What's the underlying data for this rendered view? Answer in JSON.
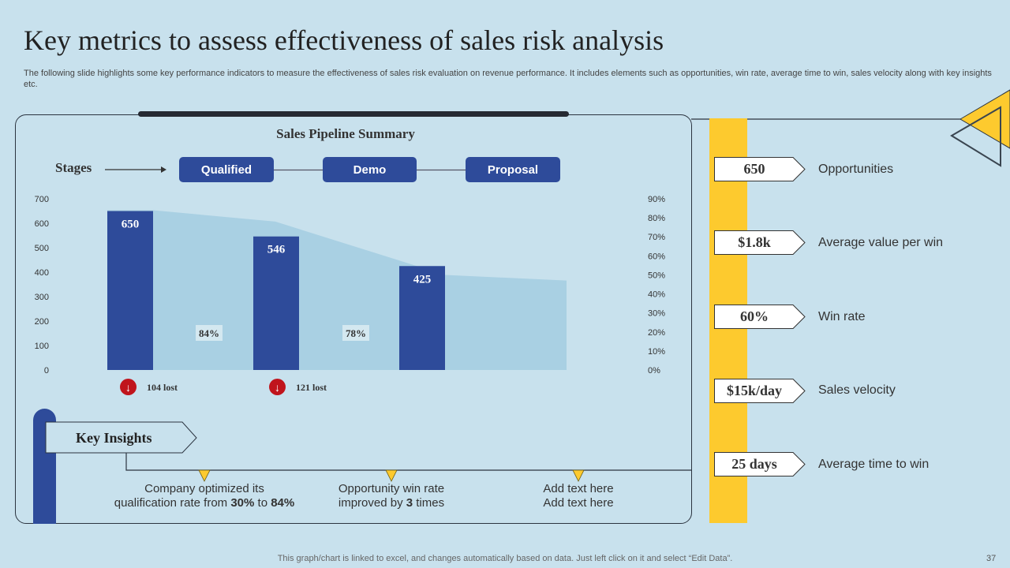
{
  "title": "Key metrics to assess effectiveness of sales risk analysis",
  "subtitle": "The following slide highlights some key performance indicators to measure the effectiveness of sales risk evaluation on revenue performance. It includes elements such as opportunities, win rate, average time to win, sales velocity along with key insights etc.",
  "stages_label": "Stages",
  "stages": [
    "Qualified",
    "Demo",
    "Proposal"
  ],
  "chart_data": {
    "type": "bar",
    "title": "Sales Pipeline Summary",
    "categories": [
      "Qualified",
      "Demo",
      "Proposal"
    ],
    "values": [
      650,
      546,
      425
    ],
    "value_labels": [
      "650",
      "546",
      "425"
    ],
    "bar_color": "#2e4b9a",
    "left_axis": {
      "ylim": [
        0,
        700
      ],
      "ticks": [
        "0",
        "100",
        "200",
        "300",
        "400",
        "500",
        "600",
        "700"
      ]
    },
    "right_axis": {
      "ylim": [
        0,
        90
      ],
      "ticks": [
        "0%",
        "10%",
        "20%",
        "30%",
        "40%",
        "50%",
        "60%",
        "70%",
        "80%",
        "90%"
      ]
    },
    "area_series": {
      "values_percent": [
        84,
        78,
        50,
        47
      ],
      "color": "#a9d0e3"
    },
    "conversion_labels": [
      "84%",
      "78%"
    ],
    "lost_labels": [
      "104 lost",
      "121 lost"
    ],
    "grid": false
  },
  "metrics": [
    {
      "value": "650",
      "label": "Opportunities"
    },
    {
      "value": "$1.8k",
      "label": "Average value per win"
    },
    {
      "value": "60%",
      "label": "Win rate"
    },
    {
      "value": "$15k/day",
      "label": "Sales velocity"
    },
    {
      "value": "25 days",
      "label": "Average time to win"
    }
  ],
  "insights_title": "Key Insights",
  "insights": [
    {
      "line1": "Company optimized its",
      "line2_pre": "qualification  rate from ",
      "b1": "30%",
      "mid": " to ",
      "b2": "84%"
    },
    {
      "line1": "Opportunity win rate",
      "line2_pre": "improved by ",
      "b1": "3",
      "mid": " times",
      "b2": ""
    },
    {
      "line1": "Add text here",
      "line2_pre": "Add text here",
      "b1": "",
      "mid": "",
      "b2": ""
    }
  ],
  "footer": "This graph/chart is linked to excel,  and changes automatically based on data. Just left click on it and select “Edit Data”.",
  "page_number": "37",
  "colors": {
    "background": "#c8e1ed",
    "accent_yellow": "#fdca2e",
    "bar_blue": "#2e4b9a",
    "lost_red": "#c0141c"
  }
}
